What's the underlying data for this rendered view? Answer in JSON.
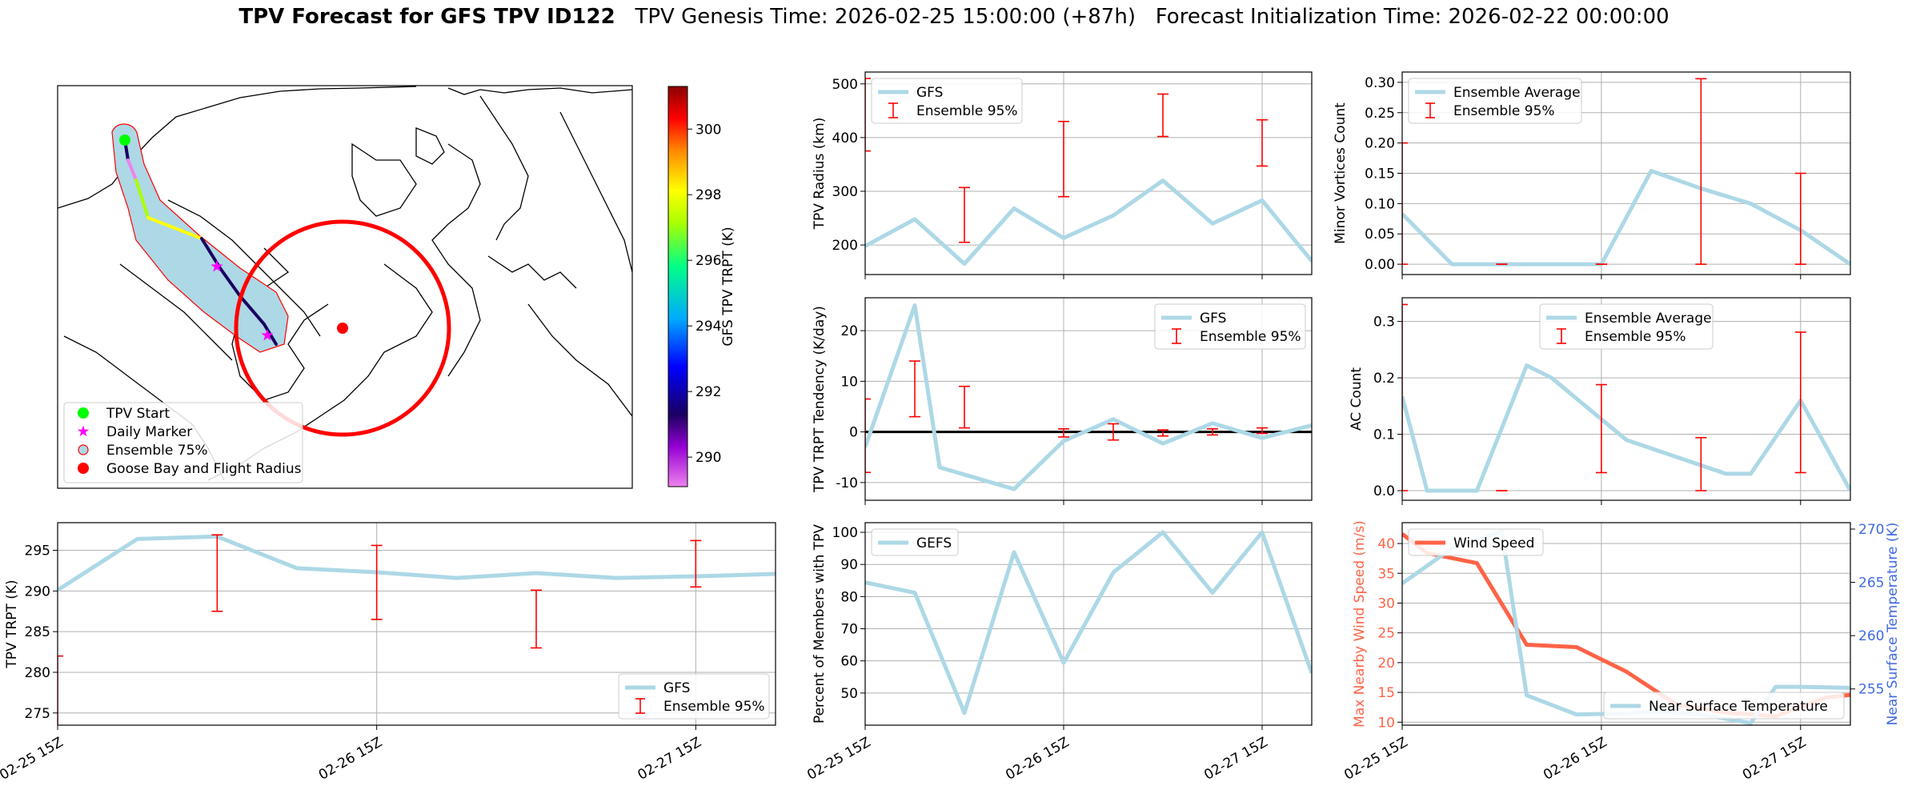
{
  "header": {
    "title_bold": "TPV Forecast for GFS TPV ID122",
    "title_genesis": "TPV Genesis Time: 2026-02-25 15:00:00 (+87h)",
    "title_init": "Forecast Initialization Time: 2026-02-22 00:00:00"
  },
  "colors": {
    "gfs_line": "#add8e6",
    "ensemble_bar": "#ff0000",
    "wind": "#ff6347",
    "surface_temp_axis": "#4169e1",
    "track_fill": "#add8e6",
    "flight_radius": "#ff0000",
    "start_marker": "#00ff00",
    "daily_marker": "#ff00ff"
  },
  "chart_data": [
    {
      "id": "map",
      "type": "map",
      "legend": [
        "TPV Start",
        "Daily Marker",
        "Ensemble 75%",
        "Goose Bay and Flight Radius"
      ],
      "colorbar": {
        "label": "GFS TPV TRPT (K)",
        "ticks": [
          290,
          292,
          294,
          296,
          298,
          300
        ],
        "range": [
          289.1,
          301.3
        ]
      },
      "track_trpt_K": [
        291.5,
        289.6,
        297.5,
        298.6,
        292.3,
        292.1,
        291.8
      ]
    },
    {
      "id": "trpt",
      "type": "line",
      "ylabel": "TPV TRPT (K)",
      "xticks": [
        "02-25 15Z",
        "02-26 15Z",
        "02-27 15Z"
      ],
      "ylim": [
        273.5,
        298.4
      ],
      "yticks": [
        275,
        280,
        285,
        290,
        295
      ],
      "xrange": [
        0,
        54
      ],
      "series": [
        {
          "name": "GFS",
          "x": [
            0,
            6,
            12,
            18,
            24,
            30,
            36,
            42,
            48,
            54
          ],
          "values": [
            290.1,
            296.4,
            296.7,
            292.8,
            292.3,
            291.6,
            292.2,
            291.6,
            291.8,
            292.1
          ]
        }
      ],
      "errorbars": {
        "name": "Ensemble 95%",
        "x": [
          0,
          12,
          24,
          36,
          48
        ],
        "low": [
          272.5,
          287.5,
          286.5,
          283.0,
          290.5
        ],
        "high": [
          282.0,
          296.9,
          295.6,
          290.1,
          296.2
        ]
      },
      "legend": "lower right"
    },
    {
      "id": "radius",
      "type": "line",
      "ylabel": "TPV Radius (km)",
      "xticks": [
        "02-25 15Z",
        "02-26 15Z",
        "02-27 15Z"
      ],
      "ylim": [
        145,
        522
      ],
      "yticks": [
        200,
        300,
        400,
        500
      ],
      "xrange": [
        0,
        54
      ],
      "series": [
        {
          "name": "GFS",
          "x": [
            0,
            6,
            12,
            18,
            24,
            30,
            36,
            42,
            48,
            54
          ],
          "values": [
            198,
            248,
            165,
            268,
            213,
            255,
            320,
            240,
            283,
            170
          ]
        }
      ],
      "errorbars": {
        "name": "Ensemble 95%",
        "x": [
          0,
          12,
          24,
          36,
          48
        ],
        "low": [
          375,
          205,
          290,
          402,
          347
        ],
        "high": [
          510,
          307,
          430,
          481,
          433
        ]
      },
      "legend": "upper left"
    },
    {
      "id": "tendency",
      "type": "line",
      "ylabel": "TPV TRPT Tendency (K/day)",
      "xticks": [
        "02-25 15Z",
        "02-26 15Z",
        "02-27 15Z"
      ],
      "ylim": [
        -13.5,
        26.5
      ],
      "yticks": [
        -10,
        0,
        10,
        20
      ],
      "xrange": [
        0,
        54
      ],
      "series": [
        {
          "name": "GFS",
          "x": [
            0,
            6,
            9,
            18,
            24,
            30,
            36,
            42,
            48,
            54
          ],
          "values": [
            -3,
            25,
            -7,
            -11.3,
            -1.8,
            2.5,
            -2.3,
            1.7,
            -1.2,
            1.3
          ]
        }
      ],
      "errorbars": {
        "name": "Ensemble 95%",
        "x": [
          0,
          6,
          12,
          24,
          30,
          36,
          42,
          48
        ],
        "low": [
          -8,
          3,
          0.8,
          -1,
          -1.6,
          -0.8,
          -0.6,
          -0.3
        ],
        "high": [
          6.5,
          14,
          9,
          0.6,
          1.6,
          0.4,
          0.6,
          0.8
        ]
      },
      "legend": "upper right"
    },
    {
      "id": "members",
      "type": "line",
      "ylabel": "Percent of Members with TPV",
      "xticks": [
        "02-25 15Z",
        "02-26 15Z",
        "02-27 15Z"
      ],
      "ylim": [
        40,
        103
      ],
      "yticks": [
        50,
        60,
        70,
        80,
        90,
        100
      ],
      "xrange": [
        0,
        54
      ],
      "series": [
        {
          "name": "GEFS",
          "x": [
            0,
            6,
            12,
            18,
            24,
            30,
            36,
            42,
            48,
            54
          ],
          "values": [
            84.4,
            81.2,
            43.8,
            93.8,
            59.4,
            87.5,
            100,
            81.2,
            100,
            56.2
          ]
        }
      ],
      "legend": "upper left"
    },
    {
      "id": "minor",
      "type": "line",
      "ylabel": "Minor Vortices Count",
      "xticks": [
        "02-25 15Z",
        "02-26 15Z",
        "02-27 15Z"
      ],
      "ylim": [
        -0.017,
        0.317
      ],
      "yticks": [
        0.0,
        0.05,
        0.1,
        0.15,
        0.2,
        0.25,
        0.3
      ],
      "xrange": [
        0,
        54
      ],
      "series": [
        {
          "name": "Ensemble Average",
          "x": [
            0,
            6,
            12,
            18,
            24,
            30,
            36,
            42,
            48,
            54
          ],
          "values": [
            0.083,
            0,
            0,
            0,
            0,
            0.154,
            0.125,
            0.1,
            0.056,
            0
          ]
        }
      ],
      "errorbars": {
        "name": "Ensemble 95%",
        "x": [
          0,
          12,
          24,
          36,
          48
        ],
        "low": [
          0,
          0,
          0,
          0,
          0
        ],
        "high": [
          0.2,
          0,
          0,
          0.306,
          0.15
        ]
      },
      "legend": "upper left"
    },
    {
      "id": "ac",
      "type": "line",
      "ylabel": "AC Count",
      "xticks": [
        "02-25 15Z",
        "02-26 15Z",
        "02-27 15Z"
      ],
      "ylim": [
        -0.017,
        0.342
      ],
      "yticks": [
        0.0,
        0.1,
        0.2,
        0.3
      ],
      "xrange": [
        0,
        54
      ],
      "series": [
        {
          "name": "Ensemble Average",
          "x": [
            0,
            3,
            9,
            15,
            18,
            27,
            33,
            39,
            42,
            48,
            54
          ],
          "values": [
            0.167,
            0,
            0,
            0.222,
            0.2,
            0.09,
            0.06,
            0.03,
            0.03,
            0.16,
            0
          ]
        }
      ],
      "errorbars": {
        "name": "Ensemble 95%",
        "x": [
          0,
          12,
          24,
          36,
          48
        ],
        "low": [
          0,
          0,
          0.032,
          0,
          0.032
        ],
        "high": [
          0.33,
          0,
          0.188,
          0.094,
          0.281
        ]
      },
      "legend": "upper center"
    },
    {
      "id": "wind",
      "type": "line",
      "ylabel": "Max Nearby Wind Speed (m/s)",
      "ylabel2": "Near Surface Temperature (K)",
      "xticks": [
        "02-25 15Z",
        "02-26 15Z",
        "02-27 15Z"
      ],
      "ylim": [
        9.5,
        43.5
      ],
      "yticks": [
        10,
        15,
        20,
        25,
        30,
        35,
        40
      ],
      "ylim2": [
        251.6,
        270.6
      ],
      "yticks2": [
        255,
        260,
        265,
        270
      ],
      "xrange": [
        0,
        54
      ],
      "series": [
        {
          "name": "Wind Speed",
          "axis": "left",
          "x": [
            0,
            3,
            9,
            15,
            21,
            27,
            33,
            39,
            45,
            51,
            54
          ],
          "values": [
            41.6,
            38.4,
            36.7,
            23.0,
            22.6,
            18.5,
            13.0,
            11.6,
            11.0,
            14.1,
            14.6
          ]
        },
        {
          "name": "Near Surface Temperature",
          "axis": "right",
          "x": [
            0,
            6,
            12,
            15,
            21,
            27,
            30,
            36,
            42,
            45,
            48,
            54
          ],
          "values": [
            264.9,
            268.2,
            269.8,
            254.4,
            252.6,
            252.7,
            252.9,
            252.6,
            251.8,
            255.2,
            255.2,
            255.1
          ]
        }
      ],
      "legend": [
        "upper left",
        "lower right"
      ]
    }
  ]
}
